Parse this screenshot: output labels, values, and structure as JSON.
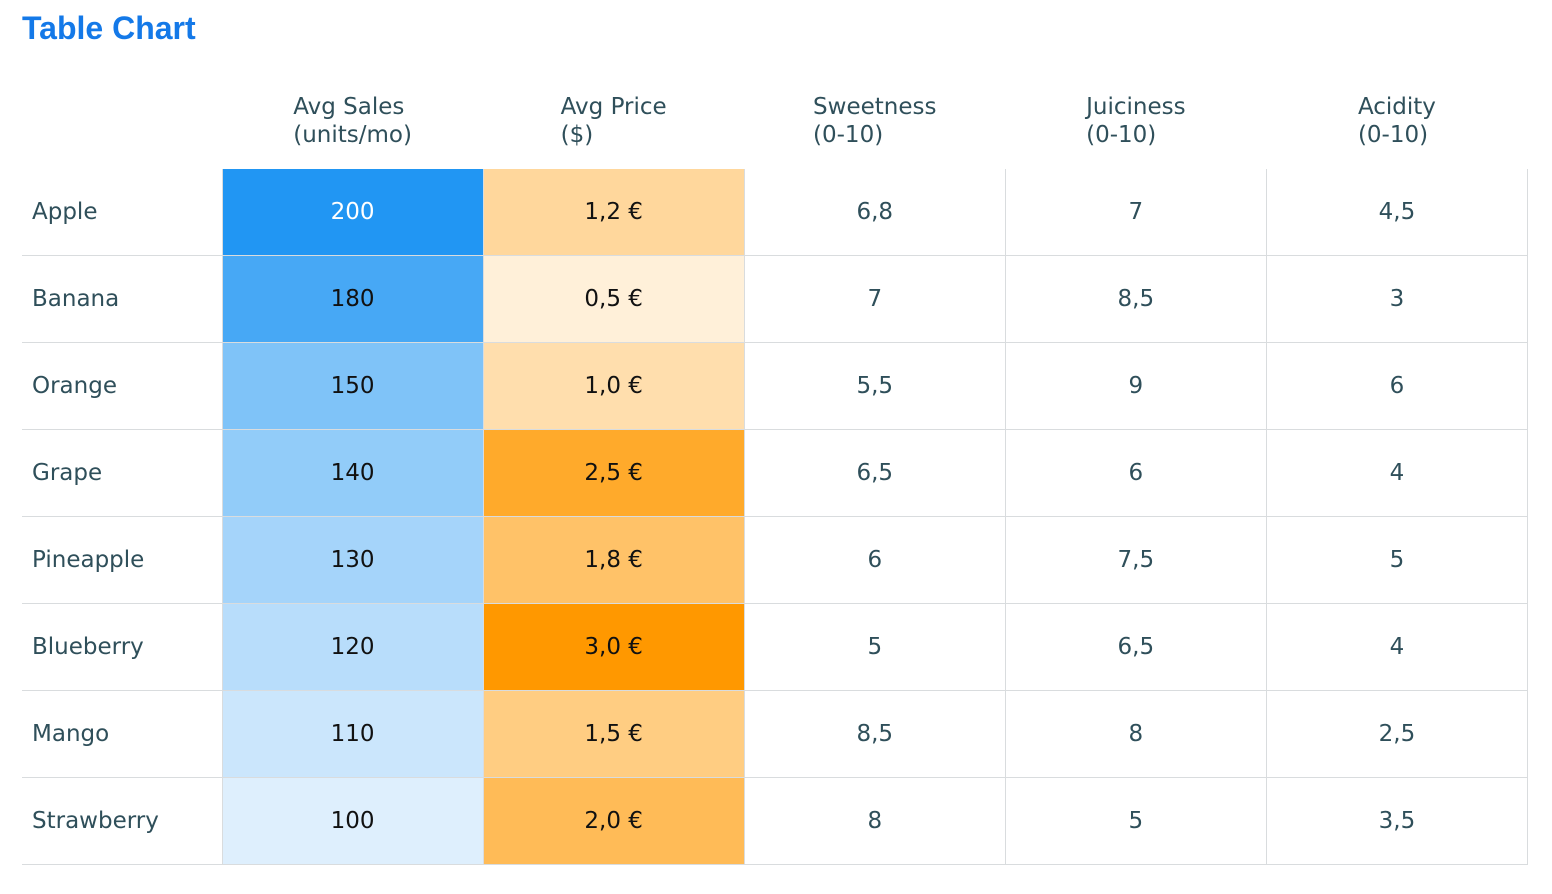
{
  "title": "Table Chart",
  "chart_data": {
    "type": "table",
    "title": "Table Chart",
    "columns": [
      {
        "line1": "",
        "line2": ""
      },
      {
        "line1": "Avg Sales",
        "line2": "(units/mo)"
      },
      {
        "line1": "Avg Price",
        "line2": "($)"
      },
      {
        "line1": "Sweetness",
        "line2": "(0-10)"
      },
      {
        "line1": "Juiciness",
        "line2": "(0-10)"
      },
      {
        "line1": "Acidity",
        "line2": "(0-10)"
      }
    ],
    "rows": [
      {
        "fruit": "Apple",
        "sales": 200,
        "sales_label": "200",
        "price": 1.2,
        "price_label": "1,2 €",
        "sweetness": "6,8",
        "juiciness": "7",
        "acidity": "4,5"
      },
      {
        "fruit": "Banana",
        "sales": 180,
        "sales_label": "180",
        "price": 0.5,
        "price_label": "0,5 €",
        "sweetness": "7",
        "juiciness": "8,5",
        "acidity": "3"
      },
      {
        "fruit": "Orange",
        "sales": 150,
        "sales_label": "150",
        "price": 1.0,
        "price_label": "1,0 €",
        "sweetness": "5,5",
        "juiciness": "9",
        "acidity": "6"
      },
      {
        "fruit": "Grape",
        "sales": 140,
        "sales_label": "140",
        "price": 2.5,
        "price_label": "2,5 €",
        "sweetness": "6,5",
        "juiciness": "6",
        "acidity": "4"
      },
      {
        "fruit": "Pineapple",
        "sales": 130,
        "sales_label": "130",
        "price": 1.8,
        "price_label": "1,8 €",
        "sweetness": "6",
        "juiciness": "7,5",
        "acidity": "5"
      },
      {
        "fruit": "Blueberry",
        "sales": 120,
        "sales_label": "120",
        "price": 3.0,
        "price_label": "3,0 €",
        "sweetness": "5",
        "juiciness": "6,5",
        "acidity": "4"
      },
      {
        "fruit": "Mango",
        "sales": 110,
        "sales_label": "110",
        "price": 1.5,
        "price_label": "1,5 €",
        "sweetness": "8,5",
        "juiciness": "8",
        "acidity": "2,5"
      },
      {
        "fruit": "Strawberry",
        "sales": 100,
        "sales_label": "100",
        "price": 2.0,
        "price_label": "2,0 €",
        "sweetness": "8",
        "juiciness": "5",
        "acidity": "3,5"
      }
    ],
    "heatmap": {
      "sales_color": "#2196f3",
      "price_color": "#ff9800"
    }
  }
}
